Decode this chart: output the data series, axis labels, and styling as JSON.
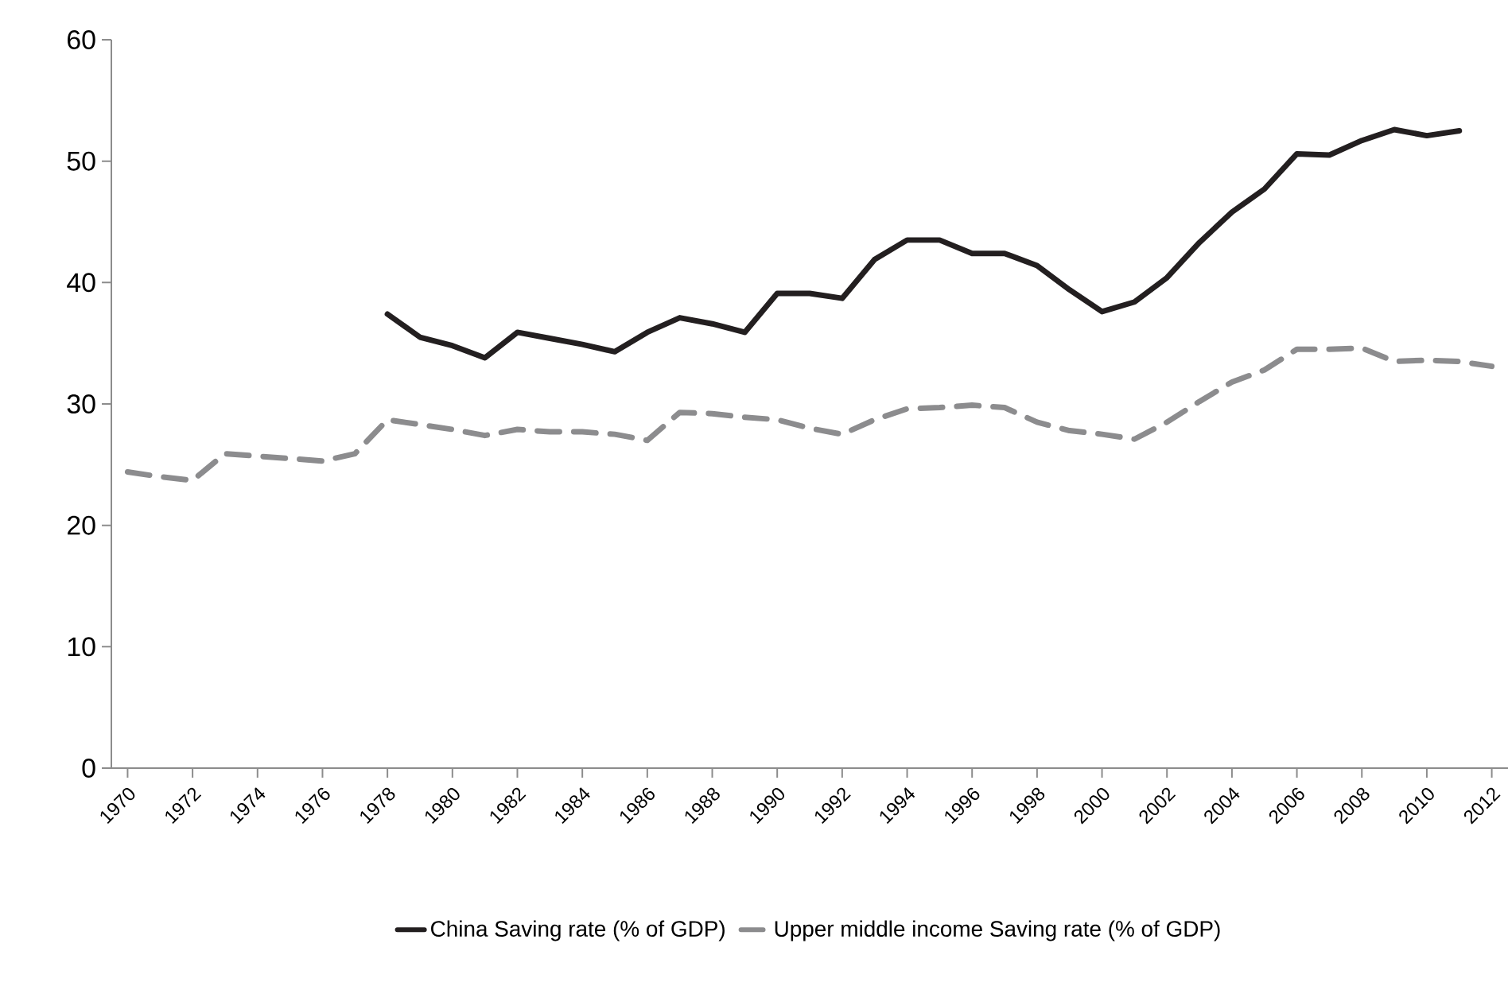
{
  "chart_data": {
    "type": "line",
    "x": [
      1970,
      1971,
      1972,
      1973,
      1974,
      1975,
      1976,
      1977,
      1978,
      1979,
      1980,
      1981,
      1982,
      1983,
      1984,
      1985,
      1986,
      1987,
      1988,
      1989,
      1990,
      1991,
      1992,
      1993,
      1994,
      1995,
      1996,
      1997,
      1998,
      1999,
      2000,
      2001,
      2002,
      2003,
      2004,
      2005,
      2006,
      2007,
      2008,
      2009,
      2010,
      2011,
      2012
    ],
    "series": [
      {
        "name": "China Saving rate (% of GDP)",
        "color": "#231f20",
        "line_style": "solid",
        "values": [
          null,
          null,
          null,
          null,
          null,
          null,
          null,
          null,
          37.4,
          35.5,
          34.8,
          33.8,
          35.9,
          35.4,
          34.9,
          34.3,
          35.9,
          37.1,
          36.6,
          35.9,
          39.1,
          39.1,
          38.7,
          41.9,
          43.5,
          43.5,
          42.4,
          42.4,
          41.4,
          39.4,
          37.6,
          38.4,
          40.4,
          43.3,
          45.8,
          47.7,
          50.6,
          50.5,
          51.7,
          52.6,
          52.1,
          52.5,
          null
        ]
      },
      {
        "name": "Upper middle income Saving rate (% of GDP)",
        "color": "#8c8c8e",
        "line_style": "dashed",
        "values": [
          24.4,
          24.0,
          23.7,
          25.9,
          25.7,
          25.5,
          25.3,
          25.9,
          28.7,
          28.3,
          27.9,
          27.4,
          27.9,
          27.7,
          27.7,
          27.5,
          27.0,
          29.3,
          29.2,
          28.9,
          28.7,
          28.0,
          27.5,
          28.7,
          29.6,
          29.7,
          29.9,
          29.7,
          28.5,
          27.8,
          27.5,
          27.1,
          28.5,
          30.2,
          31.8,
          32.8,
          34.5,
          34.5,
          34.6,
          33.5,
          33.6,
          33.5,
          33.1
        ]
      }
    ],
    "xlim": [
      1969.5,
      2012.5
    ],
    "xticks": [
      1970,
      1972,
      1974,
      1976,
      1978,
      1980,
      1982,
      1984,
      1986,
      1988,
      1990,
      1992,
      1994,
      1996,
      1998,
      2000,
      2002,
      2004,
      2006,
      2008,
      2010,
      2012
    ],
    "ylim": [
      0,
      60
    ],
    "yticks": [
      0,
      10,
      20,
      30,
      40,
      50,
      60
    ],
    "grid": false,
    "legend": "bottom",
    "marker": "none"
  }
}
